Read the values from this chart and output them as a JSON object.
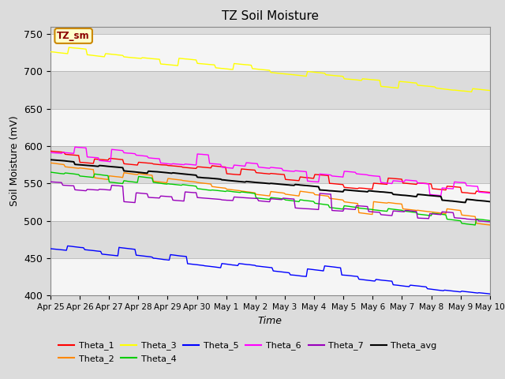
{
  "title": "TZ Soil Moisture",
  "xlabel": "Time",
  "ylabel": "Soil Moisture (mV)",
  "annotation": "TZ_sm",
  "annotation_color": "#8B0000",
  "annotation_bg": "#FFFFCC",
  "annotation_border": "#CC8800",
  "ylim": [
    400,
    760
  ],
  "yticks": [
    400,
    450,
    500,
    550,
    600,
    650,
    700,
    750
  ],
  "series_colors": {
    "Theta_1": "#FF0000",
    "Theta_2": "#FF8800",
    "Theta_3": "#FFFF00",
    "Theta_4": "#00CC00",
    "Theta_5": "#0000FF",
    "Theta_6": "#FF00FF",
    "Theta_7": "#9900BB",
    "Theta_avg": "#000000"
  },
  "xtick_labels": [
    "Apr 25",
    "Apr 26",
    "Apr 27",
    "Apr 28",
    "Apr 29",
    "Apr 30",
    "May 1",
    "May 2",
    "May 3",
    "May 4",
    "May 5",
    "May 6",
    "May 7",
    "May 8",
    "May 9",
    "May 10"
  ],
  "background_color": "#DCDCDC",
  "alt_band_color": "#F5F5F5",
  "legend_order": [
    "Theta_1",
    "Theta_2",
    "Theta_3",
    "Theta_4",
    "Theta_5",
    "Theta_6",
    "Theta_7",
    "Theta_avg"
  ],
  "series_starts": [
    588,
    574,
    730,
    567,
    469,
    596,
    548,
    578
  ],
  "series_ends": [
    535,
    502,
    672,
    497,
    402,
    542,
    504,
    522
  ]
}
